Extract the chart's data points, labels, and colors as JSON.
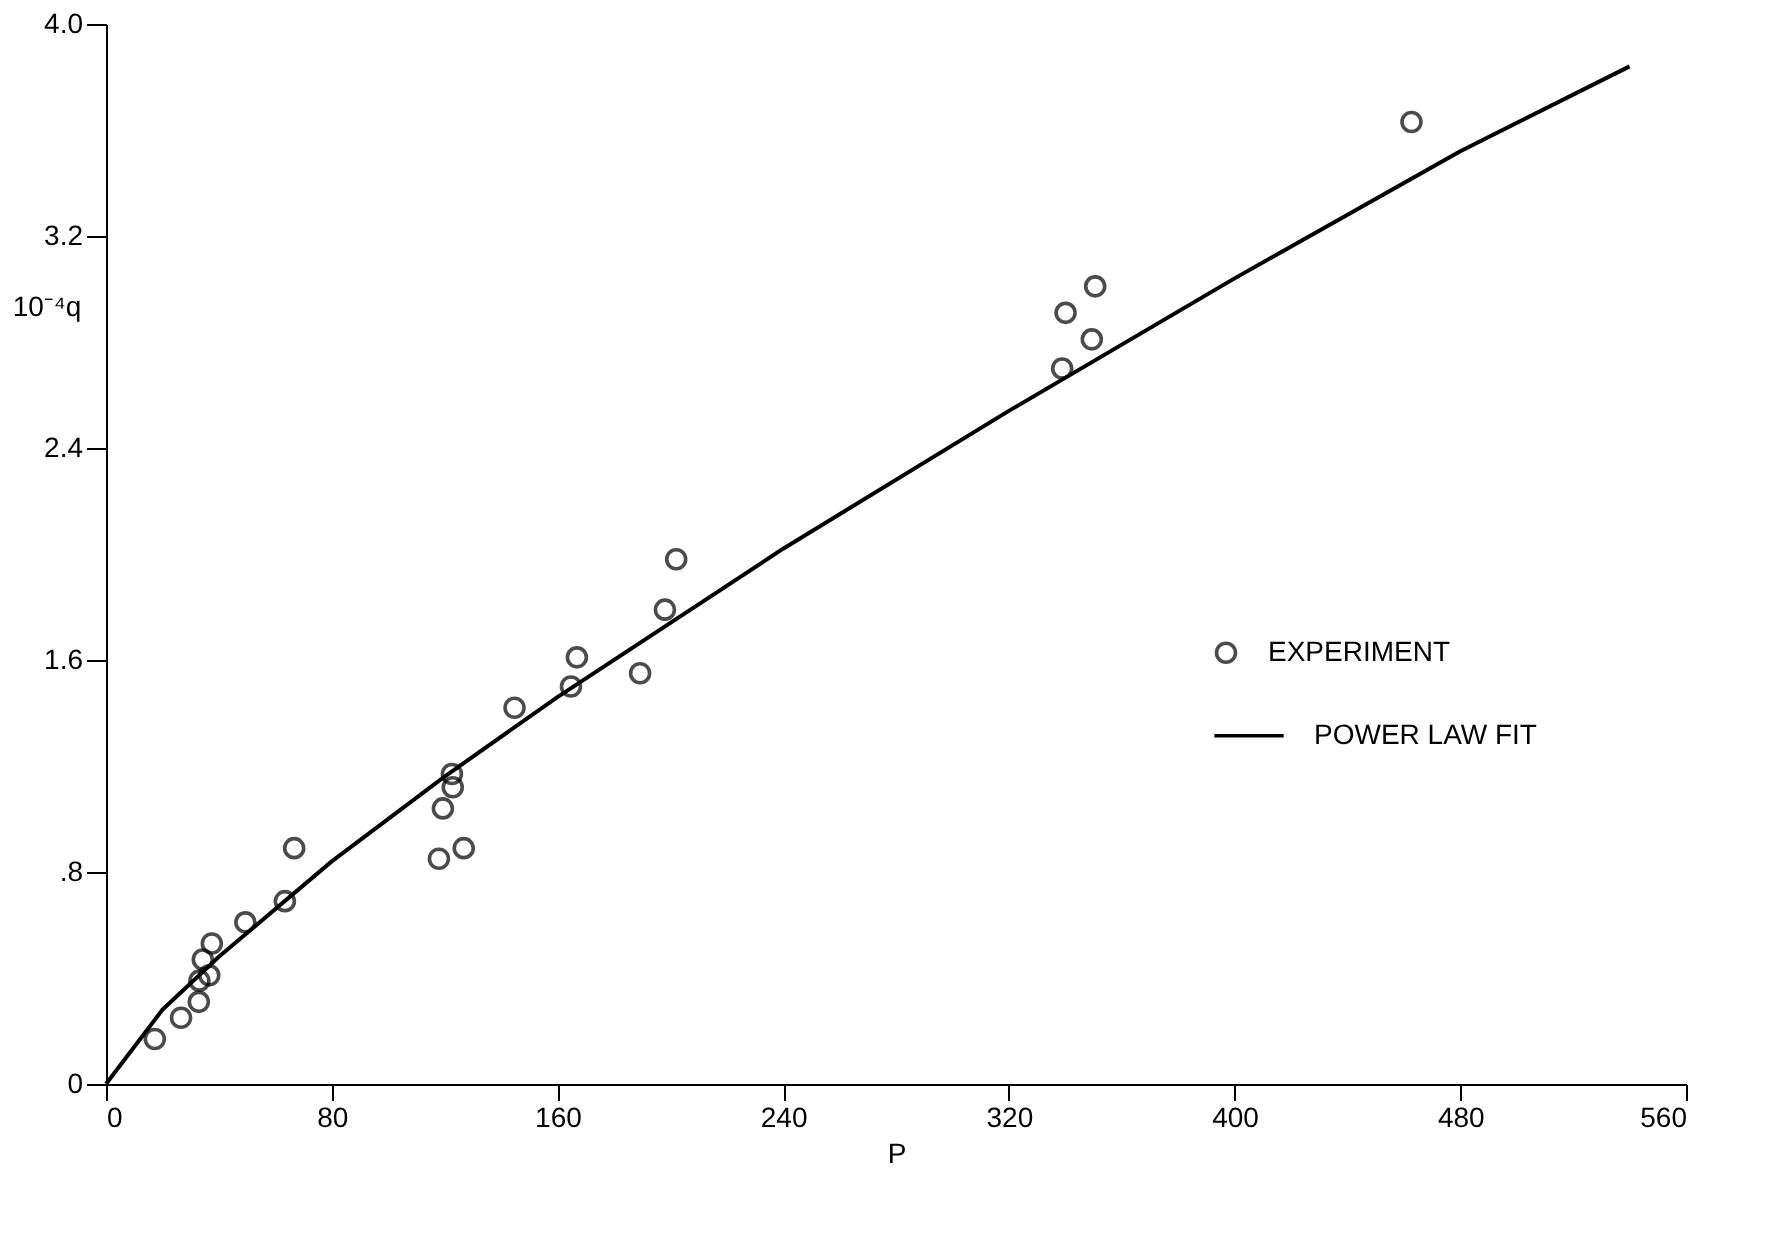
{
  "chart_data": {
    "type": "scatter",
    "xlabel": "P",
    "ylabel": "10⁻⁴q",
    "xlim": [
      0,
      560
    ],
    "xticks": [
      0,
      80,
      160,
      240,
      320,
      400,
      480,
      560
    ],
    "ylim": [
      0,
      4.0
    ],
    "yticks": [
      {
        "value": 0,
        "label": "0"
      },
      {
        "value": 0.8,
        "label": ".8"
      },
      {
        "value": 1.6,
        "label": "1.6"
      },
      {
        "value": 2.4,
        "label": "2.4"
      },
      {
        "value": 3.2,
        "label": "3.2"
      },
      {
        "value": 4.0,
        "label": "4.0"
      }
    ],
    "grid": false,
    "legend": "right",
    "series": [
      {
        "name": "EXPERIMENT",
        "color": "#000000",
        "marker": "circle",
        "x": [
          17.3,
          26.6,
          32.9,
          33.1,
          36.6,
          34.3,
          37.5,
          49.4,
          63.4,
          66.7,
          118,
          126.8,
          119.4,
          122.9,
          122.6,
          144.8,
          164.8,
          166.9,
          189.3,
          198.1,
          202.1,
          338.9,
          349.4,
          340.1,
          350.6,
          462.7
        ],
        "values": [
          0.17,
          0.25,
          0.31,
          0.39,
          0.41,
          0.47,
          0.53,
          0.61,
          0.69,
          0.89,
          0.85,
          0.89,
          1.04,
          1.12,
          1.17,
          1.42,
          1.5,
          1.61,
          1.55,
          1.79,
          1.98,
          2.7,
          2.81,
          2.91,
          3.01,
          3.63
        ]
      },
      {
        "name": "POWER LAW FIT",
        "color": "#000000",
        "type": "line",
        "line_style": "solid",
        "x": [
          0,
          20,
          40,
          80,
          120,
          160,
          240,
          320,
          400,
          480,
          540
        ],
        "values": [
          0,
          0.28,
          0.48,
          0.84,
          1.16,
          1.46,
          2.02,
          2.54,
          3.04,
          3.52,
          3.84
        ]
      }
    ]
  }
}
